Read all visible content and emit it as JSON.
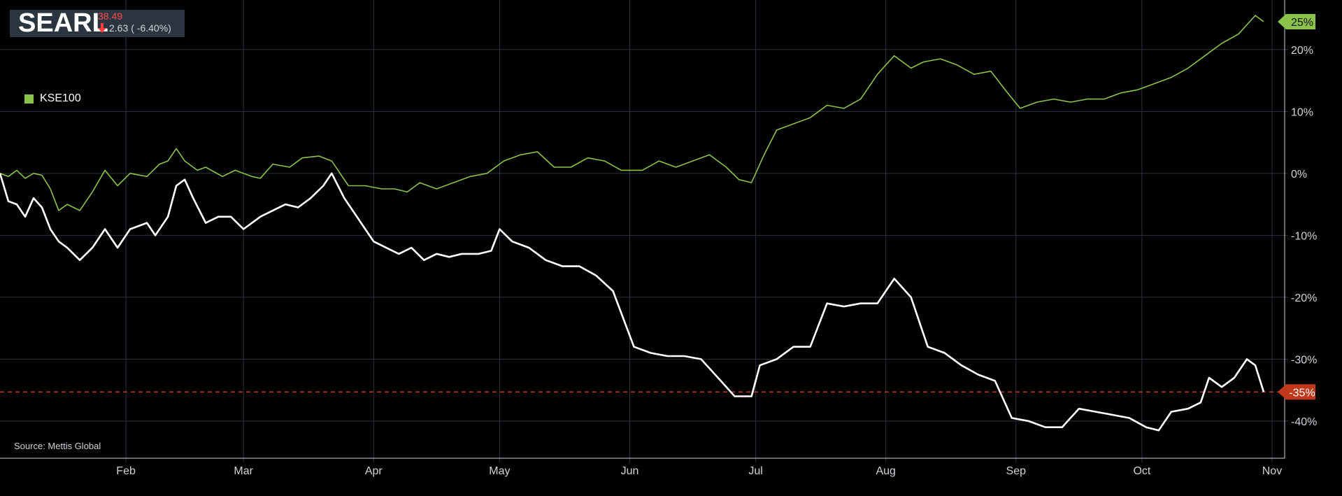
{
  "ticker": {
    "symbol": "SEARL",
    "price": "38.49",
    "change": "2.63",
    "change_pct": "( -6.40%)",
    "direction_icon": "down-arrow-icon",
    "down_color": "#ff3b3b"
  },
  "legend": {
    "label": "KSE100",
    "color": "#8bc34a"
  },
  "source": "Source: Mettis Global",
  "colors": {
    "background": "#000000",
    "grid": "#2a3440",
    "kse_line": "#8bc34a",
    "searl_line": "#ffffff",
    "searl_marker": "#c0391b",
    "reference_line": "#c0391b"
  },
  "chart_data": {
    "type": "line",
    "x_unit": "date",
    "xlim": [
      "2019-01-02",
      "2019-11-04"
    ],
    "ylim": [
      -46,
      28
    ],
    "y_ticks": [
      {
        "value": 20,
        "label": "20%"
      },
      {
        "value": 10,
        "label": "10%"
      },
      {
        "value": 0,
        "label": "0%"
      },
      {
        "value": -10,
        "label": "-10%"
      },
      {
        "value": -20,
        "label": "-20%"
      },
      {
        "value": -30,
        "label": "-30%"
      },
      {
        "value": -40,
        "label": "-40%"
      }
    ],
    "x_ticks": [
      {
        "date": "2019-02-01",
        "label": "Feb"
      },
      {
        "date": "2019-03-01",
        "label": "Mar"
      },
      {
        "date": "2019-04-01",
        "label": "Apr"
      },
      {
        "date": "2019-05-01",
        "label": "May"
      },
      {
        "date": "2019-06-01",
        "label": "Jun"
      },
      {
        "date": "2019-07-01",
        "label": "Jul"
      },
      {
        "date": "2019-08-01",
        "label": "Aug"
      },
      {
        "date": "2019-09-01",
        "label": "Sep"
      },
      {
        "date": "2019-10-01",
        "label": "Oct"
      },
      {
        "date": "2019-11-01",
        "label": "Nov"
      }
    ],
    "grid": true,
    "legend_position": "top-left",
    "last_value_markers": [
      {
        "series": "KSE100",
        "label": "25%"
      },
      {
        "series": "SEARL",
        "label": "-35%"
      }
    ],
    "reference_line": {
      "value": -35.3,
      "style": "dashed"
    },
    "series": [
      {
        "name": "KSE100",
        "color": "#8bc34a",
        "points": [
          [
            "2019-01-02",
            0
          ],
          [
            "2019-01-04",
            -0.5
          ],
          [
            "2019-01-06",
            0.5
          ],
          [
            "2019-01-08",
            -0.8
          ],
          [
            "2019-01-10",
            0
          ],
          [
            "2019-01-12",
            -0.3
          ],
          [
            "2019-01-14",
            -2.5
          ],
          [
            "2019-01-16",
            -6
          ],
          [
            "2019-01-18",
            -5
          ],
          [
            "2019-01-21",
            -6
          ],
          [
            "2019-01-24",
            -3
          ],
          [
            "2019-01-27",
            0.5
          ],
          [
            "2019-01-30",
            -2
          ],
          [
            "2019-02-02",
            0
          ],
          [
            "2019-02-06",
            -0.5
          ],
          [
            "2019-02-09",
            1.5
          ],
          [
            "2019-02-11",
            2
          ],
          [
            "2019-02-13",
            4
          ],
          [
            "2019-02-15",
            2
          ],
          [
            "2019-02-18",
            0.5
          ],
          [
            "2019-02-20",
            1
          ],
          [
            "2019-02-24",
            -0.5
          ],
          [
            "2019-02-27",
            0.5
          ],
          [
            "2019-03-03",
            -0.5
          ],
          [
            "2019-03-05",
            -0.8
          ],
          [
            "2019-03-08",
            1.5
          ],
          [
            "2019-03-12",
            1
          ],
          [
            "2019-03-15",
            2.5
          ],
          [
            "2019-03-19",
            2.8
          ],
          [
            "2019-03-22",
            2
          ],
          [
            "2019-03-26",
            -2
          ],
          [
            "2019-03-30",
            -2
          ],
          [
            "2019-04-03",
            -2.5
          ],
          [
            "2019-04-06",
            -2.5
          ],
          [
            "2019-04-09",
            -3
          ],
          [
            "2019-04-12",
            -1.5
          ],
          [
            "2019-04-16",
            -2.5
          ],
          [
            "2019-04-20",
            -1.5
          ],
          [
            "2019-04-24",
            -0.5
          ],
          [
            "2019-04-28",
            0
          ],
          [
            "2019-05-02",
            2
          ],
          [
            "2019-05-06",
            3
          ],
          [
            "2019-05-10",
            3.5
          ],
          [
            "2019-05-14",
            1
          ],
          [
            "2019-05-18",
            1
          ],
          [
            "2019-05-22",
            2.5
          ],
          [
            "2019-05-26",
            2
          ],
          [
            "2019-05-30",
            0.5
          ],
          [
            "2019-06-04",
            0.5
          ],
          [
            "2019-06-08",
            2
          ],
          [
            "2019-06-12",
            1
          ],
          [
            "2019-06-16",
            2
          ],
          [
            "2019-06-20",
            3
          ],
          [
            "2019-06-24",
            1
          ],
          [
            "2019-06-27",
            -1
          ],
          [
            "2019-06-30",
            -1.5
          ],
          [
            "2019-07-03",
            3
          ],
          [
            "2019-07-06",
            7
          ],
          [
            "2019-07-10",
            8
          ],
          [
            "2019-07-14",
            9
          ],
          [
            "2019-07-18",
            11
          ],
          [
            "2019-07-22",
            10.5
          ],
          [
            "2019-07-26",
            12
          ],
          [
            "2019-07-30",
            16
          ],
          [
            "2019-08-03",
            19
          ],
          [
            "2019-08-07",
            17
          ],
          [
            "2019-08-10",
            18
          ],
          [
            "2019-08-14",
            18.5
          ],
          [
            "2019-08-18",
            17.5
          ],
          [
            "2019-08-22",
            16
          ],
          [
            "2019-08-26",
            16.5
          ],
          [
            "2019-08-30",
            13
          ],
          [
            "2019-09-02",
            10.5
          ],
          [
            "2019-09-06",
            11.5
          ],
          [
            "2019-09-10",
            12
          ],
          [
            "2019-09-14",
            11.5
          ],
          [
            "2019-09-18",
            12
          ],
          [
            "2019-09-22",
            12
          ],
          [
            "2019-09-26",
            13
          ],
          [
            "2019-09-30",
            13.5
          ],
          [
            "2019-10-04",
            14.5
          ],
          [
            "2019-10-08",
            15.5
          ],
          [
            "2019-10-12",
            17
          ],
          [
            "2019-10-16",
            19
          ],
          [
            "2019-10-20",
            21
          ],
          [
            "2019-10-24",
            22.5
          ],
          [
            "2019-10-28",
            25.5
          ],
          [
            "2019-10-30",
            24.5
          ]
        ]
      },
      {
        "name": "SEARL",
        "color": "#ffffff",
        "points": [
          [
            "2019-01-02",
            0
          ],
          [
            "2019-01-04",
            -4.5
          ],
          [
            "2019-01-06",
            -5
          ],
          [
            "2019-01-08",
            -7
          ],
          [
            "2019-01-10",
            -4
          ],
          [
            "2019-01-12",
            -5.5
          ],
          [
            "2019-01-14",
            -9
          ],
          [
            "2019-01-16",
            -11
          ],
          [
            "2019-01-18",
            -12
          ],
          [
            "2019-01-21",
            -14
          ],
          [
            "2019-01-24",
            -12
          ],
          [
            "2019-01-27",
            -9
          ],
          [
            "2019-01-30",
            -12
          ],
          [
            "2019-02-02",
            -9
          ],
          [
            "2019-02-06",
            -8
          ],
          [
            "2019-02-08",
            -10
          ],
          [
            "2019-02-11",
            -7
          ],
          [
            "2019-02-13",
            -2
          ],
          [
            "2019-02-15",
            -1
          ],
          [
            "2019-02-17",
            -4
          ],
          [
            "2019-02-20",
            -8
          ],
          [
            "2019-02-23",
            -7
          ],
          [
            "2019-02-26",
            -7
          ],
          [
            "2019-03-01",
            -9
          ],
          [
            "2019-03-05",
            -7
          ],
          [
            "2019-03-08",
            -6
          ],
          [
            "2019-03-11",
            -5
          ],
          [
            "2019-03-14",
            -5.5
          ],
          [
            "2019-03-17",
            -4
          ],
          [
            "2019-03-20",
            -2
          ],
          [
            "2019-03-22",
            0
          ],
          [
            "2019-03-25",
            -4
          ],
          [
            "2019-03-29",
            -8
          ],
          [
            "2019-04-01",
            -11
          ],
          [
            "2019-04-04",
            -12
          ],
          [
            "2019-04-07",
            -13
          ],
          [
            "2019-04-10",
            -12
          ],
          [
            "2019-04-13",
            -14
          ],
          [
            "2019-04-16",
            -13
          ],
          [
            "2019-04-19",
            -13.5
          ],
          [
            "2019-04-22",
            -13
          ],
          [
            "2019-04-26",
            -13
          ],
          [
            "2019-04-29",
            -12.5
          ],
          [
            "2019-05-01",
            -9
          ],
          [
            "2019-05-04",
            -11
          ],
          [
            "2019-05-08",
            -12
          ],
          [
            "2019-05-12",
            -14
          ],
          [
            "2019-05-16",
            -15
          ],
          [
            "2019-05-20",
            -15
          ],
          [
            "2019-05-24",
            -16.5
          ],
          [
            "2019-05-28",
            -19
          ],
          [
            "2019-06-02",
            -28
          ],
          [
            "2019-06-06",
            -29
          ],
          [
            "2019-06-10",
            -29.5
          ],
          [
            "2019-06-14",
            -29.5
          ],
          [
            "2019-06-18",
            -30
          ],
          [
            "2019-06-22",
            -33
          ],
          [
            "2019-06-26",
            -36
          ],
          [
            "2019-06-30",
            -36
          ],
          [
            "2019-07-02",
            -31
          ],
          [
            "2019-07-06",
            -30
          ],
          [
            "2019-07-10",
            -28
          ],
          [
            "2019-07-14",
            -28
          ],
          [
            "2019-07-18",
            -21
          ],
          [
            "2019-07-22",
            -21.5
          ],
          [
            "2019-07-26",
            -21
          ],
          [
            "2019-07-30",
            -21
          ],
          [
            "2019-08-03",
            -17
          ],
          [
            "2019-08-07",
            -20
          ],
          [
            "2019-08-11",
            -28
          ],
          [
            "2019-08-15",
            -29
          ],
          [
            "2019-08-19",
            -31
          ],
          [
            "2019-08-23",
            -32.5
          ],
          [
            "2019-08-27",
            -33.5
          ],
          [
            "2019-08-31",
            -39.5
          ],
          [
            "2019-09-04",
            -40
          ],
          [
            "2019-09-08",
            -41
          ],
          [
            "2019-09-12",
            -41
          ],
          [
            "2019-09-16",
            -38
          ],
          [
            "2019-09-20",
            -38.5
          ],
          [
            "2019-09-24",
            -39
          ],
          [
            "2019-09-28",
            -39.5
          ],
          [
            "2019-10-02",
            -41
          ],
          [
            "2019-10-05",
            -41.5
          ],
          [
            "2019-10-08",
            -38.5
          ],
          [
            "2019-10-12",
            -38
          ],
          [
            "2019-10-15",
            -37
          ],
          [
            "2019-10-17",
            -33
          ],
          [
            "2019-10-20",
            -34.5
          ],
          [
            "2019-10-23",
            -33
          ],
          [
            "2019-10-26",
            -30
          ],
          [
            "2019-10-28",
            -31
          ],
          [
            "2019-10-30",
            -35.3
          ]
        ]
      }
    ]
  }
}
